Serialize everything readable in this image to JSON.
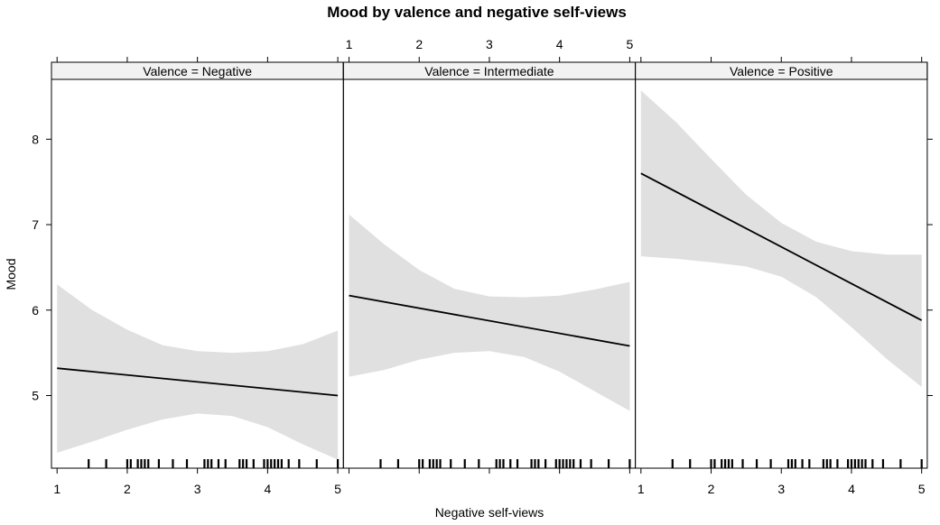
{
  "chart_data": {
    "type": "line",
    "title": "Mood by valence and negative self-views",
    "xlabel": "Negative self-views",
    "ylabel": "Mood",
    "xlim": [
      0.92,
      5.08
    ],
    "ylim": [
      4.15,
      8.7
    ],
    "xticks": [
      1,
      2,
      3,
      4,
      5
    ],
    "yticks": [
      5,
      6,
      7,
      8
    ],
    "panels": [
      {
        "strip": "Valence = Negative",
        "fit": {
          "x": [
            1,
            5
          ],
          "y": [
            5.32,
            5.0
          ]
        },
        "band": {
          "x": [
            1,
            1.5,
            2,
            2.5,
            3,
            3.5,
            4,
            4.5,
            5
          ],
          "upper": [
            6.3,
            6.0,
            5.77,
            5.59,
            5.52,
            5.5,
            5.52,
            5.6,
            5.76
          ],
          "lower": [
            4.33,
            4.46,
            4.6,
            4.72,
            4.79,
            4.76,
            4.63,
            4.43,
            4.25
          ]
        }
      },
      {
        "strip": "Valence = Intermediate",
        "fit": {
          "x": [
            1,
            5
          ],
          "y": [
            6.17,
            5.58
          ]
        },
        "band": {
          "x": [
            1,
            1.5,
            2,
            2.5,
            3,
            3.5,
            4,
            4.5,
            5
          ],
          "upper": [
            7.12,
            6.77,
            6.47,
            6.25,
            6.16,
            6.15,
            6.17,
            6.24,
            6.33
          ],
          "lower": [
            5.22,
            5.3,
            5.42,
            5.5,
            5.52,
            5.45,
            5.28,
            5.05,
            4.82
          ]
        }
      },
      {
        "strip": "Valence = Positive",
        "fit": {
          "x": [
            1,
            5
          ],
          "y": [
            7.6,
            5.88
          ]
        },
        "band": {
          "x": [
            1,
            1.5,
            2,
            2.5,
            3,
            3.5,
            4,
            4.5,
            5
          ],
          "upper": [
            8.57,
            8.2,
            7.77,
            7.35,
            7.02,
            6.8,
            6.69,
            6.65,
            6.65
          ],
          "lower": [
            6.63,
            6.6,
            6.56,
            6.51,
            6.39,
            6.15,
            5.8,
            5.43,
            5.1
          ]
        }
      }
    ],
    "rug": [
      1.45,
      1.7,
      2.0,
      2.05,
      2.15,
      2.2,
      2.25,
      2.3,
      2.45,
      2.65,
      2.85,
      3.1,
      3.15,
      3.2,
      3.3,
      3.4,
      3.6,
      3.65,
      3.7,
      3.8,
      3.95,
      4.0,
      4.05,
      4.1,
      4.15,
      4.2,
      4.3,
      4.45,
      4.7,
      5.0
    ],
    "colors": {
      "band": "#e0e0e0",
      "line": "#000000",
      "strip": "#f2f2f2",
      "frame": "#000000"
    }
  }
}
